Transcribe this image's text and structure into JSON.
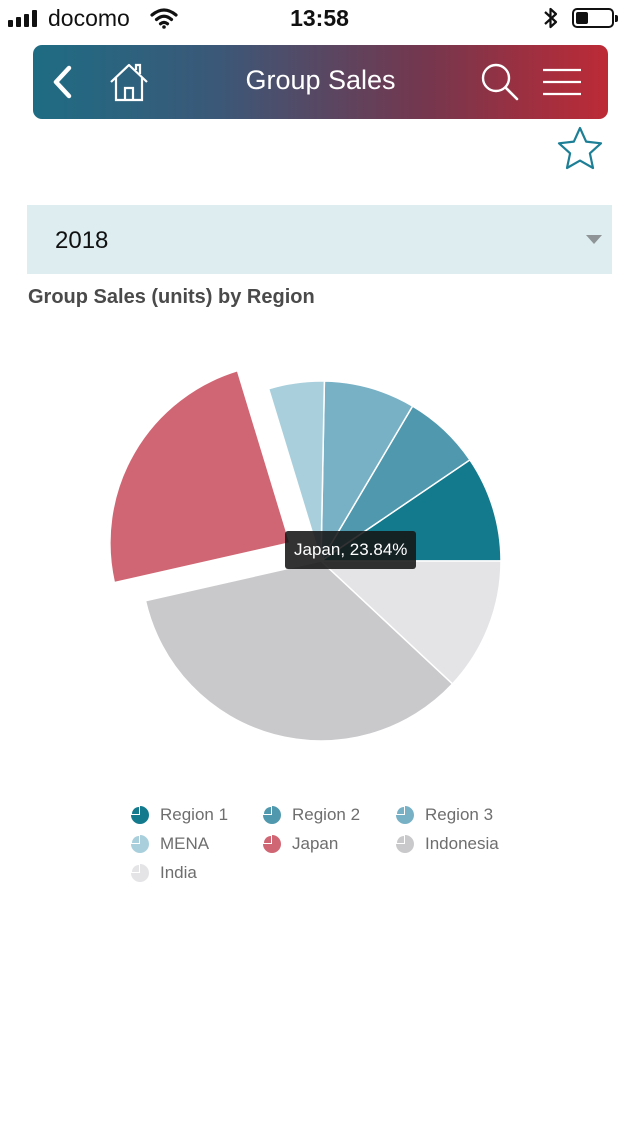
{
  "status_bar": {
    "carrier": "docomo",
    "time": "13:58",
    "battery_level": 0.35
  },
  "header": {
    "title": "Group Sales",
    "icons": [
      "back-arrow-icon",
      "home-icon",
      "search-icon",
      "hamburger-menu-icon"
    ],
    "gradient": [
      "#1e6c83",
      "#bd2a36"
    ]
  },
  "favorite": {
    "icon": "star-icon",
    "color": "#1d7f96"
  },
  "filter": {
    "selected_year": "2018"
  },
  "chart": {
    "title": "Group Sales (units) by Region",
    "tooltip": "Japan, 23.84%"
  },
  "chart_data": {
    "type": "pie",
    "title": "Group Sales (units) by Region",
    "series": [
      {
        "name": "Region 1",
        "percent": 9.5,
        "color": "#137a8e"
      },
      {
        "name": "Region 2",
        "percent": 7.0,
        "color": "#4f98ad"
      },
      {
        "name": "Region 3",
        "percent": 8.2,
        "color": "#78b1c6"
      },
      {
        "name": "MENA",
        "percent": 5.0,
        "color": "#a9cfdc"
      },
      {
        "name": "Japan",
        "percent": 23.84,
        "color": "#d06673",
        "exploded": true
      },
      {
        "name": "Indonesia",
        "percent": 34.5,
        "color": "#c9c9cc"
      },
      {
        "name": "India",
        "percent": 11.96,
        "color": "#e4e4e7"
      }
    ],
    "start_angle_deg": 0,
    "direction": "counterclockwise",
    "legend_position": "bottom"
  }
}
